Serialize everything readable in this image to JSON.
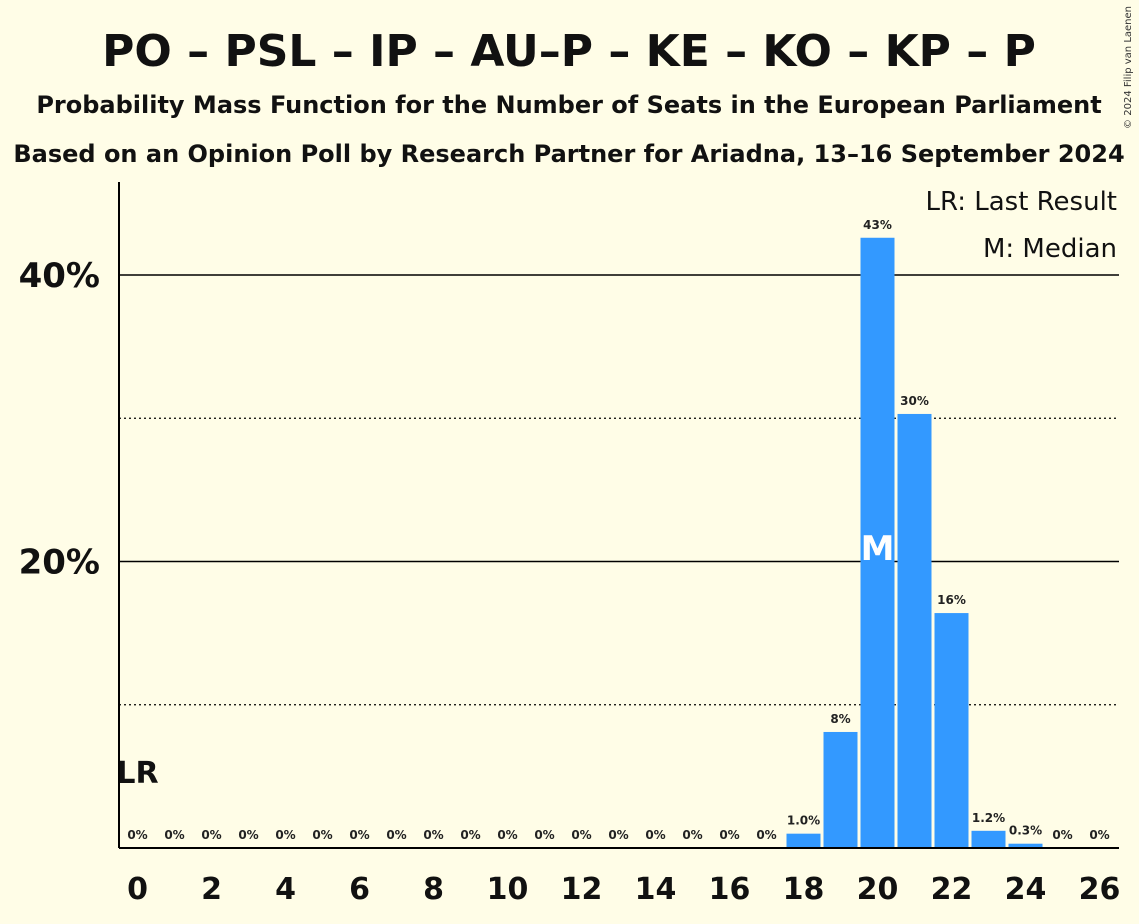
{
  "title": "PO – PSL – IP – AU–P – KE – KO – KP – P",
  "subtitle_1": "Probability Mass Function for the Number of Seats in the European Parliament",
  "subtitle_2": "Based on an Opinion Poll by Research Partner for Ariadna, 13–16 September 2024",
  "copyright": "© 2024 Filip van Laenen",
  "legend": {
    "last_result": "LR: Last Result",
    "median": "M: Median"
  },
  "markers": {
    "last_result_label": "LR",
    "last_result_seat": 0,
    "median_label": "M",
    "median_seat": 20
  },
  "colors": {
    "background": "#FFFDE7",
    "bar": "#3399FF",
    "axis": "#000000"
  },
  "chart_data": {
    "type": "bar",
    "title": "PO – PSL – IP – AU–P – KE – KO – KP – P",
    "xlabel": "",
    "ylabel": "",
    "categories": [
      "0",
      "1",
      "2",
      "3",
      "4",
      "5",
      "6",
      "7",
      "8",
      "9",
      "10",
      "11",
      "12",
      "13",
      "14",
      "15",
      "16",
      "17",
      "18",
      "19",
      "20",
      "21",
      "22",
      "23",
      "24",
      "25",
      "26"
    ],
    "values": [
      0,
      0,
      0,
      0,
      0,
      0,
      0,
      0,
      0,
      0,
      0,
      0,
      0,
      0,
      0,
      0,
      0,
      0,
      1.0,
      8.1,
      42.6,
      30.3,
      16.4,
      1.2,
      0.3,
      0,
      0
    ],
    "data_labels": [
      "0%",
      "0%",
      "0%",
      "0%",
      "0%",
      "0%",
      "0%",
      "0%",
      "0%",
      "0%",
      "0%",
      "0%",
      "0%",
      "0%",
      "0%",
      "0%",
      "0%",
      "0%",
      "1.0%",
      "8%",
      "43%",
      "30%",
      "16%",
      "1.2%",
      "0.3%",
      "0%",
      "0%"
    ],
    "x_tick_labels": [
      "0",
      "2",
      "4",
      "6",
      "8",
      "10",
      "12",
      "14",
      "16",
      "18",
      "20",
      "22",
      "24",
      "26"
    ],
    "y_tick_labels": [
      "20%",
      "40%"
    ],
    "y_gridlines_solid": [
      20,
      40
    ],
    "y_gridlines_dotted": [
      10,
      30
    ],
    "ylim": [
      0,
      46.5
    ],
    "grid": true,
    "legend_position": "top-right"
  }
}
